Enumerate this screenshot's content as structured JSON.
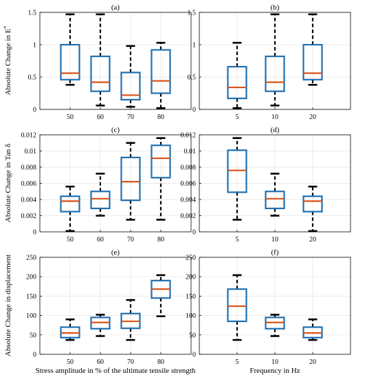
{
  "figure": {
    "ylabel_row1": "Absolute Change in E*",
    "ylabel_row2": "Absolute Change in Tan δ",
    "ylabel_row3": "Absolute Change in displacement",
    "xlabel_left": "Stress amplitude in % of the ultimate tensile strength",
    "xlabel_right": "Frequency in Hz"
  },
  "colors": {
    "box": "#1f6fb0",
    "median": "#d95319",
    "whisker": "#000000",
    "grid": "#e3e3e3"
  },
  "chart_data": [
    {
      "type": "box",
      "id": "a",
      "title": "(a)",
      "categories": [
        "50",
        "60",
        "70",
        "80"
      ],
      "ylim": [
        0,
        1.5
      ],
      "yticks": [
        0,
        0.5,
        1,
        1.5
      ],
      "ytick_labels": [
        "0",
        "0.5",
        "1",
        "1.5"
      ],
      "grid": true,
      "boxes": [
        {
          "min": 0.38,
          "q1": 0.46,
          "median": 0.56,
          "q3": 1.0,
          "max": 1.47
        },
        {
          "min": 0.06,
          "q1": 0.28,
          "median": 0.42,
          "q3": 0.82,
          "max": 1.47
        },
        {
          "min": 0.04,
          "q1": 0.15,
          "median": 0.22,
          "q3": 0.57,
          "max": 0.98
        },
        {
          "min": 0.02,
          "q1": 0.25,
          "median": 0.44,
          "q3": 0.92,
          "max": 1.03
        }
      ]
    },
    {
      "type": "box",
      "id": "b",
      "title": "(b)",
      "categories": [
        "5",
        "10",
        "20"
      ],
      "ylim": [
        0,
        1.5
      ],
      "yticks": [
        0,
        0.5,
        1,
        1.5
      ],
      "ytick_labels": [
        "0",
        "0.5",
        "1",
        "1.5"
      ],
      "grid": true,
      "boxes": [
        {
          "min": 0.02,
          "q1": 0.17,
          "median": 0.34,
          "q3": 0.66,
          "max": 1.03
        },
        {
          "min": 0.06,
          "q1": 0.28,
          "median": 0.42,
          "q3": 0.82,
          "max": 1.47
        },
        {
          "min": 0.38,
          "q1": 0.46,
          "median": 0.56,
          "q3": 1.0,
          "max": 1.47
        }
      ]
    },
    {
      "type": "box",
      "id": "c",
      "title": "(c)",
      "categories": [
        "50",
        "60",
        "70",
        "80"
      ],
      "ylim": [
        0,
        0.012
      ],
      "yticks": [
        0,
        0.002,
        0.004,
        0.006,
        0.008,
        0.01,
        0.012
      ],
      "ytick_labels": [
        "0",
        "0.002",
        "0.004",
        "0.006",
        "0.008",
        "0.01",
        "0.012"
      ],
      "grid": true,
      "boxes": [
        {
          "min": 0.0001,
          "q1": 0.0025,
          "median": 0.0038,
          "q3": 0.0044,
          "max": 0.0056
        },
        {
          "min": 0.002,
          "q1": 0.0029,
          "median": 0.0041,
          "q3": 0.005,
          "max": 0.0072
        },
        {
          "min": 0.0015,
          "q1": 0.0039,
          "median": 0.0062,
          "q3": 0.0092,
          "max": 0.011
        },
        {
          "min": 0.0015,
          "q1": 0.0067,
          "median": 0.0091,
          "q3": 0.0107,
          "max": 0.0116
        }
      ]
    },
    {
      "type": "box",
      "id": "d",
      "title": "(d)",
      "categories": [
        "5",
        "10",
        "20"
      ],
      "ylim": [
        0,
        0.012
      ],
      "yticks": [
        0,
        0.002,
        0.004,
        0.006,
        0.008,
        0.01,
        0.012
      ],
      "ytick_labels": [
        "0",
        "0.002",
        "0.004",
        "0.006",
        "0.008",
        "0.01",
        "0.012"
      ],
      "grid": true,
      "boxes": [
        {
          "min": 0.0015,
          "q1": 0.0049,
          "median": 0.0076,
          "q3": 0.0101,
          "max": 0.0116
        },
        {
          "min": 0.002,
          "q1": 0.0029,
          "median": 0.0041,
          "q3": 0.005,
          "max": 0.0072
        },
        {
          "min": 0.0001,
          "q1": 0.0025,
          "median": 0.0038,
          "q3": 0.0044,
          "max": 0.0056
        }
      ]
    },
    {
      "type": "box",
      "id": "e",
      "title": "(e)",
      "categories": [
        "50",
        "60",
        "70",
        "80"
      ],
      "ylim": [
        0,
        250
      ],
      "yticks": [
        0,
        50,
        100,
        150,
        200,
        250
      ],
      "ytick_labels": [
        "0",
        "50",
        "100",
        "150",
        "200",
        "250"
      ],
      "grid": true,
      "boxes": [
        {
          "min": 37,
          "q1": 43,
          "median": 55,
          "q3": 70,
          "max": 90
        },
        {
          "min": 47,
          "q1": 66,
          "median": 82,
          "q3": 95,
          "max": 102
        },
        {
          "min": 37,
          "q1": 67,
          "median": 85,
          "q3": 105,
          "max": 140
        },
        {
          "min": 98,
          "q1": 145,
          "median": 168,
          "q3": 190,
          "max": 204
        }
      ]
    },
    {
      "type": "box",
      "id": "f",
      "title": "(f)",
      "categories": [
        "5",
        "10",
        "20"
      ],
      "ylim": [
        0,
        250
      ],
      "yticks": [
        0,
        50,
        100,
        150,
        200,
        250
      ],
      "ytick_labels": [
        "0",
        "50",
        "100",
        "150",
        "200",
        "250"
      ],
      "grid": true,
      "boxes": [
        {
          "min": 37,
          "q1": 85,
          "median": 124,
          "q3": 168,
          "max": 204
        },
        {
          "min": 47,
          "q1": 66,
          "median": 82,
          "q3": 95,
          "max": 102
        },
        {
          "min": 37,
          "q1": 43,
          "median": 55,
          "q3": 70,
          "max": 90
        }
      ]
    }
  ]
}
